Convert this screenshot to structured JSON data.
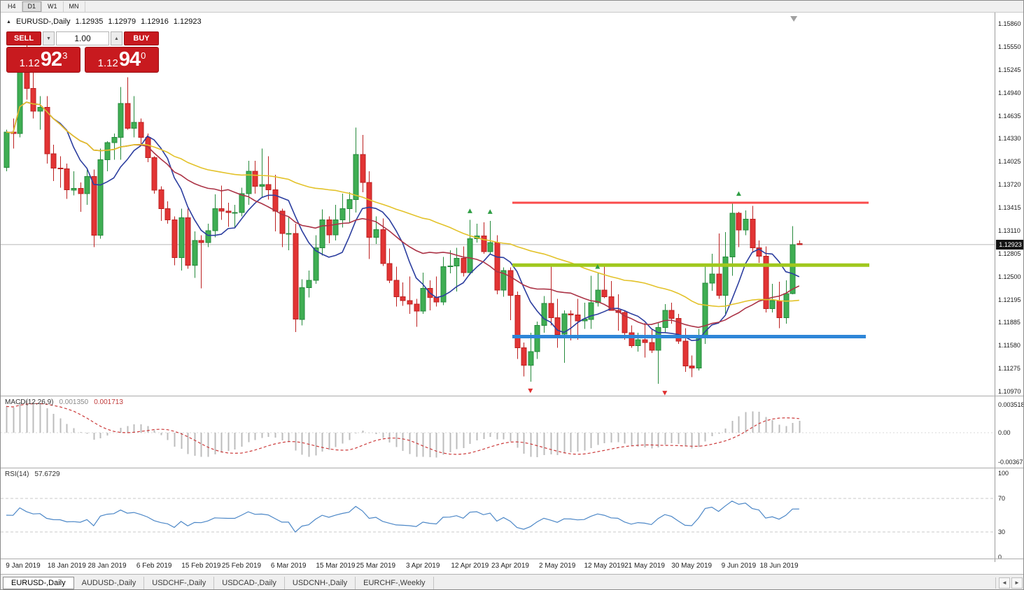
{
  "toolbar": {
    "timeframes": [
      "H4",
      "D1",
      "W1",
      "MN"
    ],
    "active": "D1"
  },
  "chart_header": {
    "symbol": "EURUSD-,Daily",
    "open": "1.12935",
    "high": "1.12979",
    "low": "1.12916",
    "close": "1.12923"
  },
  "trade_panel": {
    "sell_label": "SELL",
    "buy_label": "BUY",
    "volume": "1.00",
    "sell_price": {
      "big": "1.12",
      "pips": "92",
      "point": "3"
    },
    "buy_price": {
      "big": "1.12",
      "pips": "94",
      "point": "0"
    }
  },
  "panels": {
    "macd": {
      "name": "MACD(12,26,9)",
      "value_main": "0.001350",
      "value_signal": "0.001713",
      "axis_labels": [
        "0.003518",
        "0.00",
        "-0.00367"
      ]
    },
    "rsi": {
      "name": "RSI(14)",
      "value": "57.6729",
      "axis_labels": [
        "100",
        "70",
        "30",
        "0"
      ],
      "levels": [
        70,
        30
      ]
    }
  },
  "axes": {
    "price_labels": [
      "1.15860",
      "1.15550",
      "1.15245",
      "1.14940",
      "1.14635",
      "1.14330",
      "1.14025",
      "1.13720",
      "1.13415",
      "1.13110",
      "1.12805",
      "1.12500",
      "1.12195",
      "1.11885",
      "1.11580",
      "1.11275",
      "1.10970"
    ],
    "date_labels": [
      {
        "text": "9 Jan 2019",
        "i": 2
      },
      {
        "text": "18 Jan 2019",
        "i": 9
      },
      {
        "text": "28 Jan 2019",
        "i": 15
      },
      {
        "text": "6 Feb 2019",
        "i": 22
      },
      {
        "text": "15 Feb 2019",
        "i": 29
      },
      {
        "text": "25 Feb 2019",
        "i": 35
      },
      {
        "text": "6 Mar 2019",
        "i": 42
      },
      {
        "text": "15 Mar 2019",
        "i": 49
      },
      {
        "text": "25 Mar 2019",
        "i": 55
      },
      {
        "text": "3 Apr 2019",
        "i": 62
      },
      {
        "text": "12 Apr 2019",
        "i": 69
      },
      {
        "text": "23 Apr 2019",
        "i": 75
      },
      {
        "text": "2 May 2019",
        "i": 82
      },
      {
        "text": "12 May 2019",
        "i": 89
      },
      {
        "text": "21 May 2019",
        "i": 95
      },
      {
        "text": "30 May 2019",
        "i": 102
      },
      {
        "text": "9 Jun 2019",
        "i": 109
      },
      {
        "text": "18 Jun 2019",
        "i": 115
      }
    ]
  },
  "price_badge": "1.12923",
  "tabs": {
    "items": [
      "EURUSD-,Daily",
      "AUDUSD-,Daily",
      "USDCHF-,Daily",
      "USDCAD-,Daily",
      "USDCNH-,Daily",
      "EURCHF-,Weekly"
    ],
    "active_index": 0,
    "scroll_left_icon": "◄",
    "scroll_right_icon": "►"
  },
  "colors": {
    "bull_fill": "#3fae53",
    "bull_stroke": "#268a3c",
    "bear_fill": "#e23434",
    "bear_stroke": "#bc2020",
    "ma_fast": "#2c3e9f",
    "ma_mid": "#ab3346",
    "ma_slow": "#e3c229",
    "macd_bar": "#bcbcbc",
    "macd_signal": "#cc3b3b",
    "rsi_line": "#4c87c7",
    "hline_red": "#fa4b4b",
    "hline_olive": "#a0c81e",
    "hline_blue": "#2e86d8",
    "trade_red": "#c81a1f",
    "trade_red_border": "#991014",
    "current_price_line": "#b6b6b6",
    "marker_up": "#2f9e44",
    "marker_down": "#e03131"
  },
  "chart_data": {
    "type": "candlestick",
    "title": "EURUSD-,Daily",
    "symbol": "EURUSD",
    "timeframe": "Daily",
    "price_axis": {
      "top": 1.1586,
      "bottom": 1.1097
    },
    "current_price": 1.12923,
    "shift_marker_index": 117.2,
    "candles": [
      [
        1.1395,
        1.1445,
        1.139,
        1.1442
      ],
      [
        1.1442,
        1.146,
        1.142,
        1.144
      ],
      [
        1.144,
        1.1555,
        1.1435,
        1.1545
      ],
      [
        1.1545,
        1.157,
        1.1485,
        1.15
      ],
      [
        1.15,
        1.154,
        1.146,
        1.147
      ],
      [
        1.147,
        1.149,
        1.1445,
        1.1475
      ],
      [
        1.1475,
        1.149,
        1.14,
        1.1413
      ],
      [
        1.1413,
        1.1425,
        1.1377,
        1.1394
      ],
      [
        1.1394,
        1.141,
        1.1368,
        1.1393
      ],
      [
        1.1393,
        1.14,
        1.1353,
        1.1365
      ],
      [
        1.1365,
        1.139,
        1.1358,
        1.1367
      ],
      [
        1.1367,
        1.1375,
        1.1336,
        1.136
      ],
      [
        1.136,
        1.1394,
        1.1345,
        1.1383
      ],
      [
        1.1383,
        1.1392,
        1.1289,
        1.1305
      ],
      [
        1.1305,
        1.142,
        1.13,
        1.1405
      ],
      [
        1.1405,
        1.143,
        1.139,
        1.1428
      ],
      [
        1.1428,
        1.144,
        1.1405,
        1.1435
      ],
      [
        1.1435,
        1.1502,
        1.1405,
        1.148
      ],
      [
        1.148,
        1.1515,
        1.1445,
        1.1447
      ],
      [
        1.1447,
        1.149,
        1.1435,
        1.1455
      ],
      [
        1.1455,
        1.146,
        1.1424,
        1.1435
      ],
      [
        1.1435,
        1.144,
        1.1402,
        1.1408
      ],
      [
        1.1408,
        1.141,
        1.136,
        1.1365
      ],
      [
        1.1365,
        1.137,
        1.1324,
        1.134
      ],
      [
        1.134,
        1.135,
        1.132,
        1.1325
      ],
      [
        1.1325,
        1.133,
        1.1265,
        1.1275
      ],
      [
        1.1275,
        1.134,
        1.1258,
        1.1328
      ],
      [
        1.1328,
        1.134,
        1.126,
        1.1265
      ],
      [
        1.1265,
        1.131,
        1.1248,
        1.1298
      ],
      [
        1.1298,
        1.1305,
        1.1234,
        1.1295
      ],
      [
        1.1295,
        1.132,
        1.1289,
        1.1311
      ],
      [
        1.1311,
        1.1359,
        1.1302,
        1.134
      ],
      [
        1.134,
        1.1371,
        1.1325,
        1.1337
      ],
      [
        1.1337,
        1.1348,
        1.1316,
        1.1335
      ],
      [
        1.1335,
        1.1345,
        1.1315,
        1.1335
      ],
      [
        1.1335,
        1.1368,
        1.133,
        1.136
      ],
      [
        1.136,
        1.1404,
        1.1345,
        1.139
      ],
      [
        1.139,
        1.1404,
        1.136,
        1.137
      ],
      [
        1.137,
        1.142,
        1.1355,
        1.1372
      ],
      [
        1.1372,
        1.141,
        1.1352,
        1.1365
      ],
      [
        1.1365,
        1.1385,
        1.131,
        1.1337
      ],
      [
        1.1337,
        1.134,
        1.1289,
        1.1307
      ],
      [
        1.1307,
        1.1329,
        1.1285,
        1.1307
      ],
      [
        1.1307,
        1.132,
        1.1176,
        1.1193
      ],
      [
        1.1193,
        1.1246,
        1.1185,
        1.1235
      ],
      [
        1.1235,
        1.1258,
        1.1222,
        1.1245
      ],
      [
        1.1245,
        1.1305,
        1.124,
        1.1288
      ],
      [
        1.1288,
        1.1339,
        1.1278,
        1.1325
      ],
      [
        1.1325,
        1.133,
        1.1294,
        1.1305
      ],
      [
        1.1305,
        1.1345,
        1.1298,
        1.1325
      ],
      [
        1.1325,
        1.136,
        1.1315,
        1.134
      ],
      [
        1.134,
        1.1362,
        1.1322,
        1.1352
      ],
      [
        1.1352,
        1.1448,
        1.1335,
        1.1412
      ],
      [
        1.1412,
        1.1438,
        1.1362,
        1.1375
      ],
      [
        1.1375,
        1.139,
        1.1273,
        1.1302
      ],
      [
        1.1302,
        1.133,
        1.1293,
        1.1312
      ],
      [
        1.1312,
        1.1327,
        1.1264,
        1.1267
      ],
      [
        1.1267,
        1.1287,
        1.1241,
        1.1245
      ],
      [
        1.1245,
        1.1263,
        1.121,
        1.1223
      ],
      [
        1.1223,
        1.1242,
        1.1211,
        1.1218
      ],
      [
        1.1218,
        1.125,
        1.12,
        1.1213
      ],
      [
        1.1213,
        1.122,
        1.1183,
        1.1204
      ],
      [
        1.1204,
        1.1255,
        1.12,
        1.1234
      ],
      [
        1.1234,
        1.1245,
        1.1205,
        1.1222
      ],
      [
        1.1222,
        1.125,
        1.121,
        1.1216
      ],
      [
        1.1216,
        1.1276,
        1.1212,
        1.1263
      ],
      [
        1.1263,
        1.1285,
        1.1254,
        1.1264
      ],
      [
        1.1264,
        1.1288,
        1.123,
        1.1274
      ],
      [
        1.1274,
        1.129,
        1.125,
        1.1255
      ],
      [
        1.1255,
        1.1325,
        1.1252,
        1.13
      ],
      [
        1.13,
        1.132,
        1.1295,
        1.1304
      ],
      [
        1.1304,
        1.1322,
        1.128,
        1.1283
      ],
      [
        1.1283,
        1.1324,
        1.128,
        1.1295
      ],
      [
        1.1295,
        1.1305,
        1.1226,
        1.1232
      ],
      [
        1.1232,
        1.1262,
        1.1223,
        1.1258
      ],
      [
        1.1258,
        1.1262,
        1.1192,
        1.1225
      ],
      [
        1.1225,
        1.123,
        1.114,
        1.1155
      ],
      [
        1.1155,
        1.1162,
        1.1117,
        1.1132
      ],
      [
        1.1132,
        1.1175,
        1.111,
        1.115
      ],
      [
        1.115,
        1.119,
        1.114,
        1.1185
      ],
      [
        1.1185,
        1.1224,
        1.1175,
        1.1214
      ],
      [
        1.1214,
        1.1265,
        1.1185,
        1.1195
      ],
      [
        1.1195,
        1.122,
        1.1155,
        1.1173
      ],
      [
        1.1173,
        1.1205,
        1.1135,
        1.12
      ],
      [
        1.12,
        1.1205,
        1.1165,
        1.1199
      ],
      [
        1.1199,
        1.122,
        1.1166,
        1.1191
      ],
      [
        1.1191,
        1.1215,
        1.118,
        1.1193
      ],
      [
        1.1193,
        1.1251,
        1.118,
        1.1215
      ],
      [
        1.1215,
        1.1254,
        1.121,
        1.1232
      ],
      [
        1.1232,
        1.1264,
        1.1221,
        1.1223
      ],
      [
        1.1223,
        1.1244,
        1.1205,
        1.1205
      ],
      [
        1.1205,
        1.1226,
        1.1178,
        1.1202
      ],
      [
        1.1202,
        1.1205,
        1.1166,
        1.1175
      ],
      [
        1.1175,
        1.1185,
        1.1155,
        1.1158
      ],
      [
        1.1158,
        1.1175,
        1.115,
        1.1166
      ],
      [
        1.1166,
        1.1188,
        1.1142,
        1.1162
      ],
      [
        1.1162,
        1.118,
        1.1148,
        1.1152
      ],
      [
        1.1152,
        1.1188,
        1.1107,
        1.1182
      ],
      [
        1.1182,
        1.1213,
        1.1175,
        1.1205
      ],
      [
        1.1205,
        1.1215,
        1.1187,
        1.1194
      ],
      [
        1.1194,
        1.12,
        1.116,
        1.1164
      ],
      [
        1.1164,
        1.1181,
        1.1123,
        1.1131
      ],
      [
        1.1131,
        1.1145,
        1.1116,
        1.1128
      ],
      [
        1.1128,
        1.118,
        1.1125,
        1.1168
      ],
      [
        1.1168,
        1.1263,
        1.116,
        1.1241
      ],
      [
        1.1241,
        1.128,
        1.1231,
        1.1253
      ],
      [
        1.1253,
        1.1307,
        1.122,
        1.1225
      ],
      [
        1.1225,
        1.1309,
        1.12,
        1.1276
      ],
      [
        1.1276,
        1.1348,
        1.1251,
        1.1334
      ],
      [
        1.1334,
        1.1336,
        1.1289,
        1.1312
      ],
      [
        1.1312,
        1.1338,
        1.1305,
        1.1326
      ],
      [
        1.1326,
        1.1344,
        1.1283,
        1.1288
      ],
      [
        1.1288,
        1.1298,
        1.1268,
        1.1277
      ],
      [
        1.1277,
        1.129,
        1.1202,
        1.1207
      ],
      [
        1.1207,
        1.124,
        1.1202,
        1.1218
      ],
      [
        1.1218,
        1.1243,
        1.1181,
        1.1195
      ],
      [
        1.1195,
        1.1245,
        1.1187,
        1.1227
      ],
      [
        1.1227,
        1.1317,
        1.1226,
        1.1292
      ],
      [
        1.12935,
        1.12979,
        1.12916,
        1.12923
      ]
    ],
    "moving_averages": [
      {
        "period": 8,
        "color_key": "ma_fast"
      },
      {
        "period": 20,
        "color_key": "ma_mid"
      },
      {
        "period": 50,
        "color_key": "ma_slow"
      }
    ],
    "hlines": [
      {
        "price": 1.1348,
        "from_index": 75.3,
        "to_index": 128.3,
        "color_key": "hline_red",
        "width": 3
      },
      {
        "price": 1.1265,
        "from_index": 75.3,
        "to_index": 128.4,
        "color_key": "hline_olive",
        "width": 5
      },
      {
        "price": 1.117,
        "from_index": 75.3,
        "to_index": 127.9,
        "color_key": "hline_blue",
        "width": 5
      }
    ],
    "markers": [
      {
        "index": 69,
        "price": 1.1337,
        "dir": "up"
      },
      {
        "index": 72,
        "price": 1.1336,
        "dir": "up"
      },
      {
        "index": 78,
        "price": 1.1098,
        "dir": "down"
      },
      {
        "index": 88,
        "price": 1.1263,
        "dir": "up"
      },
      {
        "index": 98,
        "price": 1.1095,
        "dir": "down"
      },
      {
        "index": 109,
        "price": 1.136,
        "dir": "up"
      }
    ],
    "indicators": {
      "macd": {
        "fast": 12,
        "slow": 26,
        "signal": 9,
        "scale_max": 0.003518,
        "scale_min": -0.00367
      },
      "rsi": {
        "period": 14,
        "current": 57.6729
      }
    }
  }
}
